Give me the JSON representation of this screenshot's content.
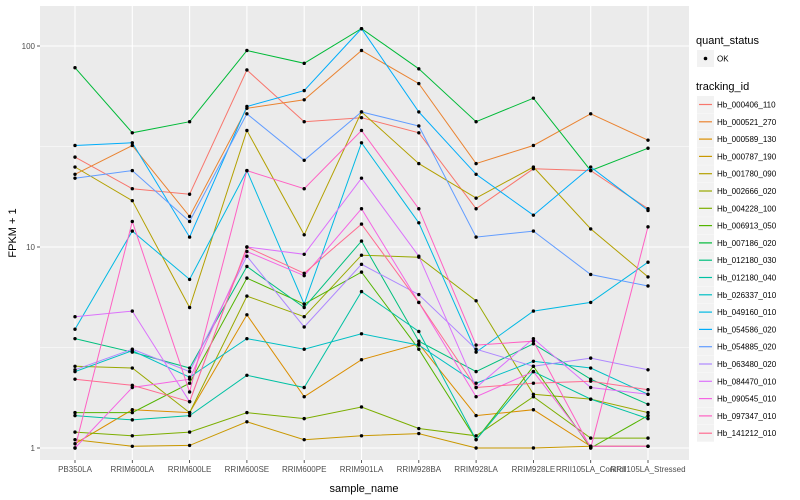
{
  "chart_data": {
    "type": "line",
    "title": "",
    "xlabel": "sample_name",
    "ylabel": "FPKM + 1",
    "yscale": "log10",
    "ylim": [
      0.85,
      140
    ],
    "yticks": [
      1,
      10,
      100
    ],
    "ytick_labels": [
      "1",
      "10",
      "100"
    ],
    "grid": true,
    "legend_placement": "right",
    "categories": [
      "PB350LA",
      "RRIM600LA",
      "RRIM600LE",
      "RRIM600SE",
      "RRIM600PE",
      "RRIM901LA",
      "RRIM928BA",
      "RRIM928LA",
      "RRIM928LE",
      "RRII105LA_Control",
      "RRII105LA_Stressed"
    ],
    "point_legend": {
      "title": "quant_status",
      "entries": [
        "OK"
      ]
    },
    "color_legend_title": "tracking_id",
    "series": [
      {
        "name": "Hb_000406_110",
        "color": "#F8766D",
        "values": [
          28,
          19.5,
          18.3,
          76,
          42,
          44,
          37,
          15.5,
          24.5,
          24,
          15.5
        ]
      },
      {
        "name": "Hb_000521_270",
        "color": "#EA8331",
        "values": [
          23,
          32,
          14.2,
          49,
          54,
          95,
          65,
          26,
          32,
          46,
          34
        ]
      },
      {
        "name": "Hb_000589_130",
        "color": "#DB8E00",
        "values": [
          1.05,
          1.55,
          1.5,
          4.6,
          1.8,
          2.75,
          3.3,
          1.45,
          1.55,
          1.02,
          1.02
        ]
      },
      {
        "name": "Hb_000787_190",
        "color": "#C99800",
        "values": [
          1.1,
          1.02,
          1.03,
          1.35,
          1.1,
          1.15,
          1.18,
          1.0,
          1.0,
          1.02,
          1.02
        ]
      },
      {
        "name": "Hb_001780_090",
        "color": "#B3A000",
        "values": [
          25,
          17,
          5.0,
          38,
          11.5,
          47,
          26,
          17.5,
          25,
          12.3,
          7.1
        ]
      },
      {
        "name": "Hb_002666_020",
        "color": "#99A800",
        "values": [
          2.55,
          2.5,
          1.5,
          5.7,
          4.5,
          9.1,
          8.9,
          5.4,
          1.85,
          1.75,
          1.5
        ]
      },
      {
        "name": "Hb_004228_100",
        "color": "#7CAE00",
        "values": [
          1.2,
          1.15,
          1.2,
          1.5,
          1.4,
          1.6,
          1.25,
          1.15,
          1.8,
          1.12,
          1.12
        ]
      },
      {
        "name": "Hb_006913_050",
        "color": "#53B400",
        "values": [
          1.5,
          1.5,
          2.1,
          7.0,
          5.2,
          7.5,
          3.1,
          1.1,
          2.55,
          1.0,
          1.45
        ]
      },
      {
        "name": "Hb_007186_020",
        "color": "#00BA38",
        "values": [
          78,
          37,
          42,
          95,
          82,
          122,
          77,
          42,
          55,
          24,
          31
        ]
      },
      {
        "name": "Hb_012180_030",
        "color": "#00BF7D",
        "values": [
          3.5,
          3.0,
          2.5,
          8.0,
          5.0,
          10.7,
          3.4,
          2.4,
          3.3,
          2.2,
          1.65
        ]
      },
      {
        "name": "Hb_012180_040",
        "color": "#00C1A3",
        "values": [
          1.45,
          1.38,
          1.45,
          2.3,
          2.0,
          6.0,
          3.8,
          1.1,
          2.4,
          1.75,
          1.4
        ]
      },
      {
        "name": "Hb_026337_010",
        "color": "#00BFC4",
        "values": [
          2.4,
          3.05,
          2.25,
          3.5,
          3.1,
          3.7,
          3.25,
          2.1,
          2.7,
          2.5,
          1.85
        ]
      },
      {
        "name": "Hb_049160_010",
        "color": "#00B9E3",
        "values": [
          3.9,
          12.0,
          6.9,
          24.0,
          5.2,
          33,
          13.2,
          3.0,
          4.8,
          5.3,
          8.4
        ]
      },
      {
        "name": "Hb_054586_020",
        "color": "#00ADFA",
        "values": [
          32,
          33,
          11.2,
          50,
          60,
          122,
          47,
          23,
          14.4,
          25,
          15.2
        ]
      },
      {
        "name": "Hb_054885_020",
        "color": "#619CFF",
        "values": [
          22,
          24,
          13.4,
          46,
          27,
          47,
          40,
          11.2,
          12.0,
          7.3,
          6.4
        ]
      },
      {
        "name": "Hb_063480_020",
        "color": "#AE87FF",
        "values": [
          2.45,
          3.1,
          2.4,
          9.0,
          4.0,
          8.2,
          5.8,
          3.1,
          2.55,
          2.8,
          2.45
        ]
      },
      {
        "name": "Hb_084470_010",
        "color": "#DB72FB",
        "values": [
          4.5,
          4.8,
          1.7,
          10.0,
          9.2,
          22,
          9.0,
          2.0,
          3.5,
          2.0,
          1.85
        ]
      },
      {
        "name": "Hb_090545_010",
        "color": "#F564E3",
        "values": [
          1.0,
          2.0,
          2.2,
          9.5,
          7.2,
          15.5,
          5.3,
          1.8,
          2.4,
          1.02,
          1.02
        ]
      },
      {
        "name": "Hb_097347_010",
        "color": "#FF61C3",
        "values": [
          1.0,
          13.4,
          1.9,
          24.0,
          19.5,
          38,
          15.5,
          3.25,
          3.4,
          1.0,
          12.6
        ]
      },
      {
        "name": "Hb_141212_010",
        "color": "#FF6C91",
        "values": [
          2.2,
          2.05,
          1.7,
          10.0,
          7.4,
          13.0,
          5.3,
          2.0,
          2.1,
          2.15,
          1.95
        ]
      }
    ]
  }
}
